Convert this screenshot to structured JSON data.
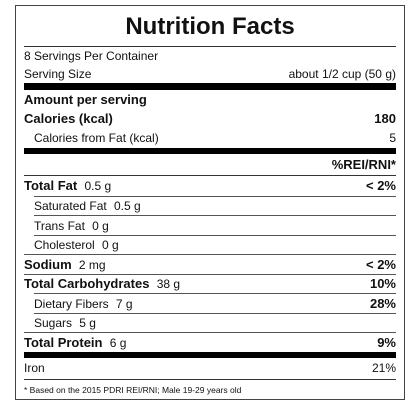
{
  "title": "Nutrition Facts",
  "servings": "8 Servings Per Container",
  "serving_size": {
    "label": "Serving Size",
    "value": "about 1/2 cup (50 g)"
  },
  "amount_per_serving": "Amount per serving",
  "calories": {
    "label": "Calories (kcal)",
    "value": "180"
  },
  "calories_from_fat": {
    "label": "Calories from Fat (kcal)",
    "value": "5"
  },
  "percent_header": "%REI/RNI*",
  "rows": [
    {
      "name": "Total Fat",
      "amount": "0.5 g",
      "percent": "< 2%",
      "sub": [
        {
          "name": "Saturated Fat",
          "amount": "0.5 g"
        },
        {
          "name": "Trans Fat",
          "amount": "0 g"
        },
        {
          "name": "Cholesterol",
          "amount": "0 g"
        }
      ]
    },
    {
      "name": "Sodium",
      "amount": "2 mg",
      "percent": "< 2%"
    },
    {
      "name": "Total Carbohydrates",
      "amount": "38 g",
      "percent": "10%",
      "sub": [
        {
          "name": "Dietary Fibers",
          "amount": "7 g",
          "percent": "28%"
        },
        {
          "name": "Sugars",
          "amount": "5 g"
        }
      ]
    },
    {
      "name": "Total Protein",
      "amount": "6 g",
      "percent": "9%"
    }
  ],
  "iron": {
    "label": "Iron",
    "value": "21%"
  },
  "footnote": "* Based on the 2015 PDRI REI/RNI; Male 19-29 years old"
}
